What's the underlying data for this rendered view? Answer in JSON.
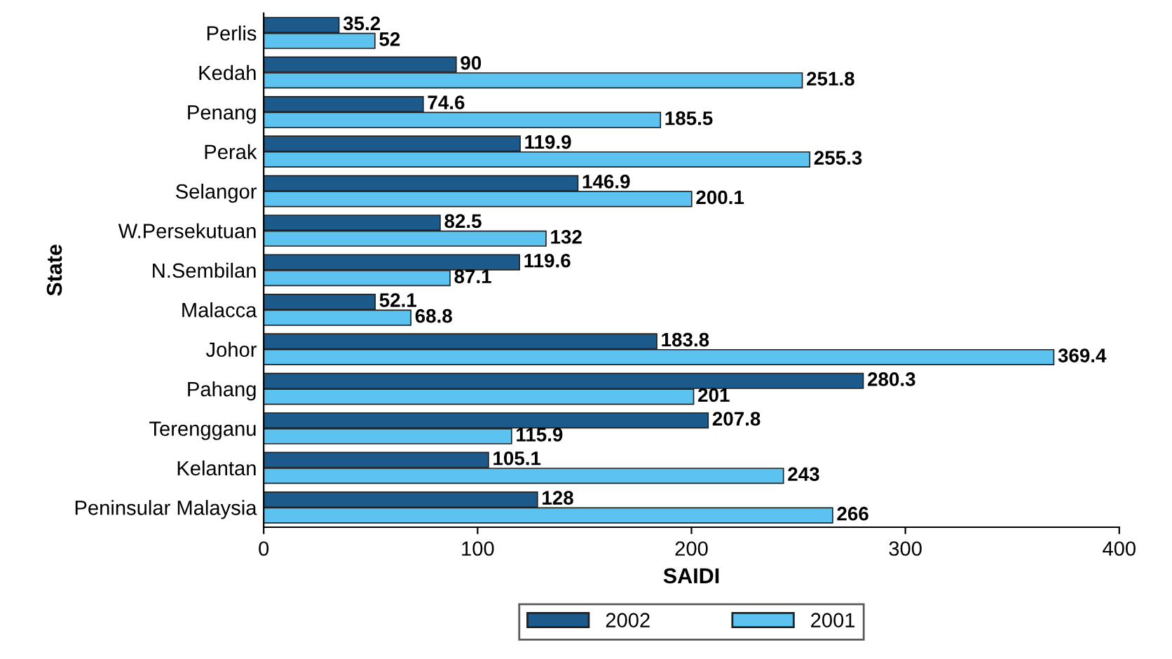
{
  "chart_data": {
    "type": "bar",
    "orientation": "horizontal",
    "xlabel": "SAIDI",
    "ylabel": "State",
    "categories": [
      "Perlis",
      "Kedah",
      "Penang",
      "Perak",
      "Selangor",
      "W.Persekutuan",
      "N.Sembilan",
      "Malacca",
      "Johor",
      "Pahang",
      "Terengganu",
      "Kelantan",
      "Peninsular Malaysia"
    ],
    "series": [
      {
        "name": "2002",
        "color": "#1c5a8c",
        "values": [
          35.2,
          90,
          74.6,
          119.9,
          146.9,
          82.5,
          119.6,
          52.1,
          183.8,
          280.3,
          207.8,
          105.1,
          128
        ]
      },
      {
        "name": "2001",
        "color": "#5cc3f0",
        "values": [
          52,
          251.8,
          185.5,
          255.3,
          200.1,
          132,
          87.1,
          68.8,
          369.4,
          201,
          115.9,
          243,
          266
        ]
      }
    ],
    "xlim": [
      0,
      400
    ],
    "xticks": [
      0,
      100,
      200,
      300,
      400
    ],
    "grid": false,
    "legend": "bottom",
    "data_labels": true
  }
}
